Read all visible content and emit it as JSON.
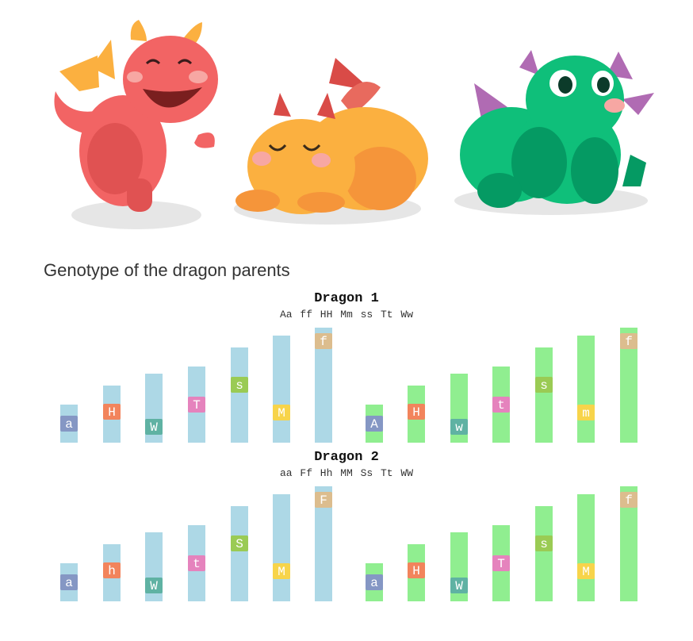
{
  "title": "Genotype of the dragon parents",
  "dragons": [
    {
      "name": "red-dragon-illustration",
      "color": "#f26464"
    },
    {
      "name": "orange-dragon-illustration",
      "color": "#fbb040"
    },
    {
      "name": "green-dragon-illustration",
      "color": "#0fbf7a"
    }
  ],
  "colors": {
    "chromosome_a": "#add8e6",
    "chromosome_b": "#90ee90",
    "gene": {
      "a": "#8597c4",
      "h": "#f2845c",
      "w": "#5fb2a3",
      "t": "#e583bd",
      "s": "#9acb54",
      "m": "#f7d44a",
      "f": "#dcbd8e"
    }
  },
  "parents": [
    {
      "name": "Dragon 1",
      "genotype": "Aa ff HH Mm ss Tt Ww",
      "chromosome_a": [
        {
          "allele": "a",
          "gene": "a"
        },
        {
          "allele": "H",
          "gene": "h"
        },
        {
          "allele": "W",
          "gene": "w"
        },
        {
          "allele": "T",
          "gene": "t"
        },
        {
          "allele": "s",
          "gene": "s"
        },
        {
          "allele": "M",
          "gene": "m"
        },
        {
          "allele": "f",
          "gene": "f"
        }
      ],
      "chromosome_b": [
        {
          "allele": "A",
          "gene": "a"
        },
        {
          "allele": "H",
          "gene": "h"
        },
        {
          "allele": "w",
          "gene": "w"
        },
        {
          "allele": "t",
          "gene": "t"
        },
        {
          "allele": "s",
          "gene": "s"
        },
        {
          "allele": "m",
          "gene": "m"
        },
        {
          "allele": "f",
          "gene": "f"
        }
      ]
    },
    {
      "name": "Dragon 2",
      "genotype": "aa Ff Hh MM Ss Tt WW",
      "chromosome_a": [
        {
          "allele": "a",
          "gene": "a"
        },
        {
          "allele": "h",
          "gene": "h"
        },
        {
          "allele": "W",
          "gene": "w"
        },
        {
          "allele": "t",
          "gene": "t"
        },
        {
          "allele": "S",
          "gene": "s"
        },
        {
          "allele": "M",
          "gene": "m"
        },
        {
          "allele": "F",
          "gene": "f"
        }
      ],
      "chromosome_b": [
        {
          "allele": "a",
          "gene": "a"
        },
        {
          "allele": "H",
          "gene": "h"
        },
        {
          "allele": "W",
          "gene": "w"
        },
        {
          "allele": "T",
          "gene": "t"
        },
        {
          "allele": "s",
          "gene": "s"
        },
        {
          "allele": "M",
          "gene": "m"
        },
        {
          "allele": "f",
          "gene": "f"
        }
      ]
    }
  ]
}
